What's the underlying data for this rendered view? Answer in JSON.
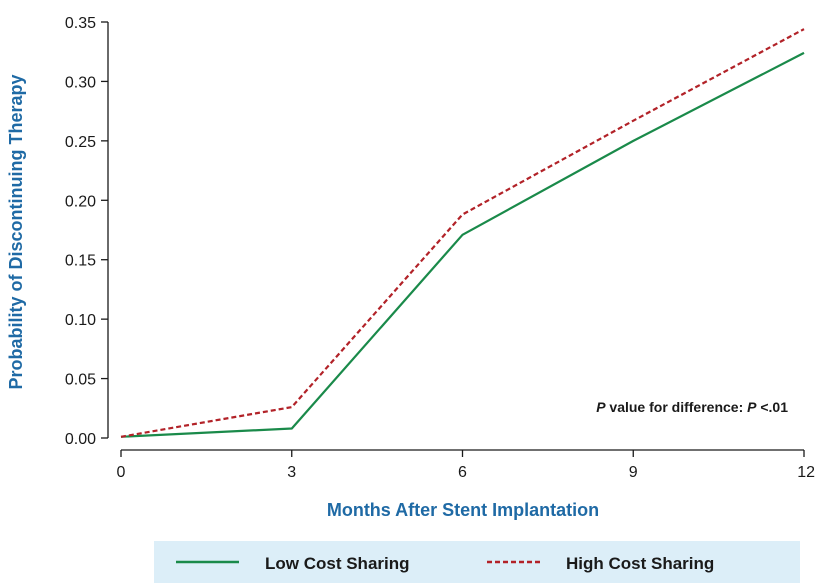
{
  "chart_data": {
    "type": "line",
    "title": "",
    "xlabel": "Months After Stent Implantation",
    "ylabel": "Probability of Discontinuing Therapy",
    "x": [
      0,
      3,
      6,
      9,
      12
    ],
    "xticks": [
      "0",
      "3",
      "6",
      "9",
      "12"
    ],
    "yticks": [
      "0.00",
      "0.05",
      "0.10",
      "0.15",
      "0.20",
      "0.25",
      "0.30",
      "0.35"
    ],
    "xlim": [
      0,
      12
    ],
    "ylim": [
      0,
      0.35
    ],
    "grid": false,
    "legend_position": "bottom",
    "series": [
      {
        "name": "Low Cost Sharing",
        "values": [
          0.001,
          0.008,
          0.171,
          0.25,
          0.324
        ],
        "color": "#1a8a4a",
        "style": "solid"
      },
      {
        "name": "High Cost Sharing",
        "values": [
          0.001,
          0.026,
          0.188,
          0.267,
          0.344
        ],
        "color": "#b22228",
        "style": "dashed"
      }
    ],
    "annotation": {
      "prefix_italic": "P",
      "middle": " value for difference: ",
      "stat_italic": "P",
      "suffix": " <.01"
    },
    "colors": {
      "axis_title": "#1f6aa5",
      "legend_bg": "#dceef8"
    }
  }
}
